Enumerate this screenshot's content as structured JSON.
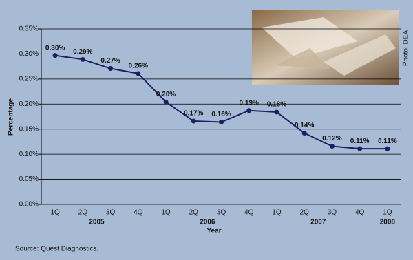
{
  "chart_data": {
    "type": "line",
    "categories": [
      "1Q",
      "2Q",
      "3Q",
      "4Q",
      "1Q",
      "2Q",
      "3Q",
      "4Q",
      "1Q",
      "2Q",
      "3Q",
      "4Q",
      "1Q"
    ],
    "year_labels": [
      "2005",
      "2006",
      "2007",
      "2008"
    ],
    "values": [
      0.297,
      0.289,
      0.271,
      0.261,
      0.204,
      0.166,
      0.164,
      0.187,
      0.184,
      0.142,
      0.116,
      0.111,
      0.111
    ],
    "value_labels": [
      "0.30%",
      "0.29%",
      "0.27%",
      "0.26%",
      "0.20%",
      "0.17%",
      "0.16%",
      "0.19%",
      "0.18%",
      "0.14%",
      "0.12%",
      "0.11%",
      "0.11%"
    ],
    "color": "#1c1f66",
    "ylim": [
      0,
      0.35
    ],
    "yticks": [
      {
        "value": 0,
        "label": "0.00%"
      },
      {
        "value": 0.05,
        "label": "0.05%"
      },
      {
        "value": 0.1,
        "label": "0.10%"
      },
      {
        "value": 0.15,
        "label": "0.15%"
      },
      {
        "value": 0.2,
        "label": "0.20%"
      },
      {
        "value": 0.25,
        "label": "0.25%"
      },
      {
        "value": 0.3,
        "label": "0.30%"
      },
      {
        "value": 0.35,
        "label": "0.35%"
      }
    ],
    "grid": true,
    "y_label": "Percentage",
    "x_label": "Year",
    "source": "Source: Quest Diagnostics.",
    "photo_credit": "Photo: DEA"
  }
}
